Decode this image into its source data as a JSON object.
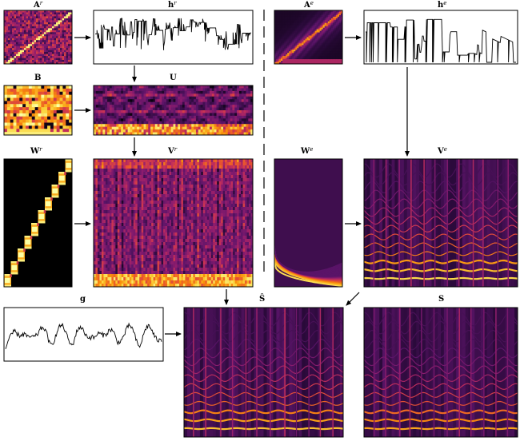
{
  "figure": {
    "panels": [
      {
        "id": "Ar",
        "label": "A",
        "sup": "r",
        "kind": "similarity-rhythm"
      },
      {
        "id": "hr",
        "label": "h",
        "sup": "r",
        "kind": "activation-line"
      },
      {
        "id": "Ae",
        "label": "A",
        "sup": "e",
        "kind": "similarity-excitation"
      },
      {
        "id": "he",
        "label": "h",
        "sup": "e",
        "kind": "activation-line"
      },
      {
        "id": "B",
        "label": "B",
        "sup": "",
        "kind": "blocks"
      },
      {
        "id": "U",
        "label": "U",
        "sup": "",
        "kind": "heatmap"
      },
      {
        "id": "Wr",
        "label": "W",
        "sup": "r",
        "kind": "staircase"
      },
      {
        "id": "Vr",
        "label": "V",
        "sup": "r",
        "kind": "heatmap"
      },
      {
        "id": "We",
        "label": "W",
        "sup": "e",
        "kind": "harmonics"
      },
      {
        "id": "Ve",
        "label": "V",
        "sup": "e",
        "kind": "spectrogram"
      },
      {
        "id": "g",
        "label": "g",
        "sup": "",
        "kind": "envelope-line"
      },
      {
        "id": "Shat",
        "label": "Ŝ",
        "sup": "",
        "kind": "spectrogram"
      },
      {
        "id": "S",
        "label": "S",
        "sup": "",
        "kind": "spectrogram"
      }
    ],
    "arrows": [
      "Ar-hr",
      "hr-U",
      "B-U",
      "U-Vr",
      "Wr-Vr",
      "Ae-he",
      "he-Ve",
      "We-Ve",
      "Vr-Shat",
      "Ve-Shat",
      "g-Shat"
    ],
    "colormap": [
      "#000000",
      "#2a0a3a",
      "#5a1468",
      "#8c1c6e",
      "#c22e5a",
      "#e8542f",
      "#f98e0a",
      "#fbd43d",
      "#fcffa4"
    ]
  }
}
